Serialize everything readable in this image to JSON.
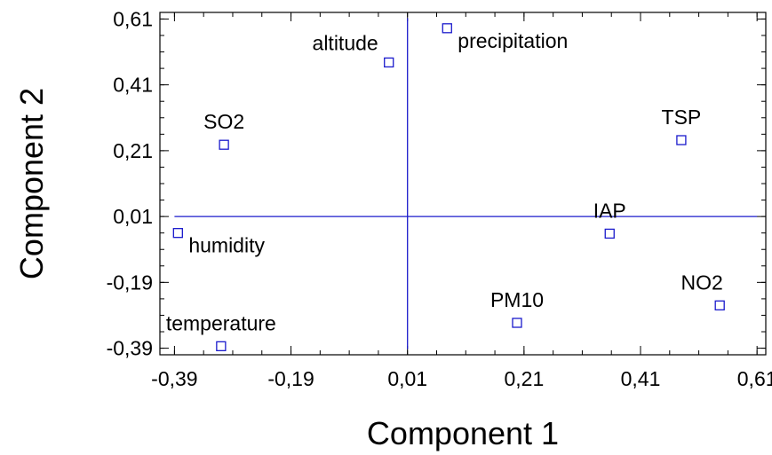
{
  "chart_data": {
    "type": "scatter",
    "title": "",
    "xlabel": "Component 1",
    "ylabel": "Component 2",
    "xlim": [
      -0.415,
      0.625
    ],
    "ylim": [
      -0.41,
      0.63
    ],
    "major_ticks": [
      -0.39,
      -0.19,
      0.01,
      0.21,
      0.41,
      0.61
    ],
    "x_tick_labels": [
      "-0,39",
      "-0,19",
      "0,01",
      "0,21",
      "0,41",
      "0,61"
    ],
    "y_tick_labels": [
      "-0,39",
      "-0,19",
      "0,01",
      "0,21",
      "0,41",
      "0,61"
    ],
    "minor_tick_step": 0.05,
    "grid": false,
    "reference_lines": {
      "x": 0.01,
      "y": 0.01
    },
    "marker": "hollow-square",
    "marker_color": "#1a1acc",
    "points": [
      {
        "label": "altitude",
        "x": -0.022,
        "y": 0.478,
        "label_pos": "upper-left"
      },
      {
        "label": "precipitation",
        "x": 0.078,
        "y": 0.582,
        "label_pos": "lower-right"
      },
      {
        "label": "SO2",
        "x": -0.305,
        "y": 0.228,
        "label_pos": "above"
      },
      {
        "label": "TSP",
        "x": 0.48,
        "y": 0.242,
        "label_pos": "above"
      },
      {
        "label": "IAP",
        "x": 0.357,
        "y": -0.042,
        "label_pos": "above"
      },
      {
        "label": "humidity",
        "x": -0.384,
        "y": -0.04,
        "label_pos": "lower-right"
      },
      {
        "label": "NO2",
        "x": 0.546,
        "y": -0.26,
        "label_pos": "above-left"
      },
      {
        "label": "PM10",
        "x": 0.198,
        "y": -0.313,
        "label_pos": "above"
      },
      {
        "label": "temperature",
        "x": -0.31,
        "y": -0.384,
        "label_pos": "above"
      }
    ]
  }
}
